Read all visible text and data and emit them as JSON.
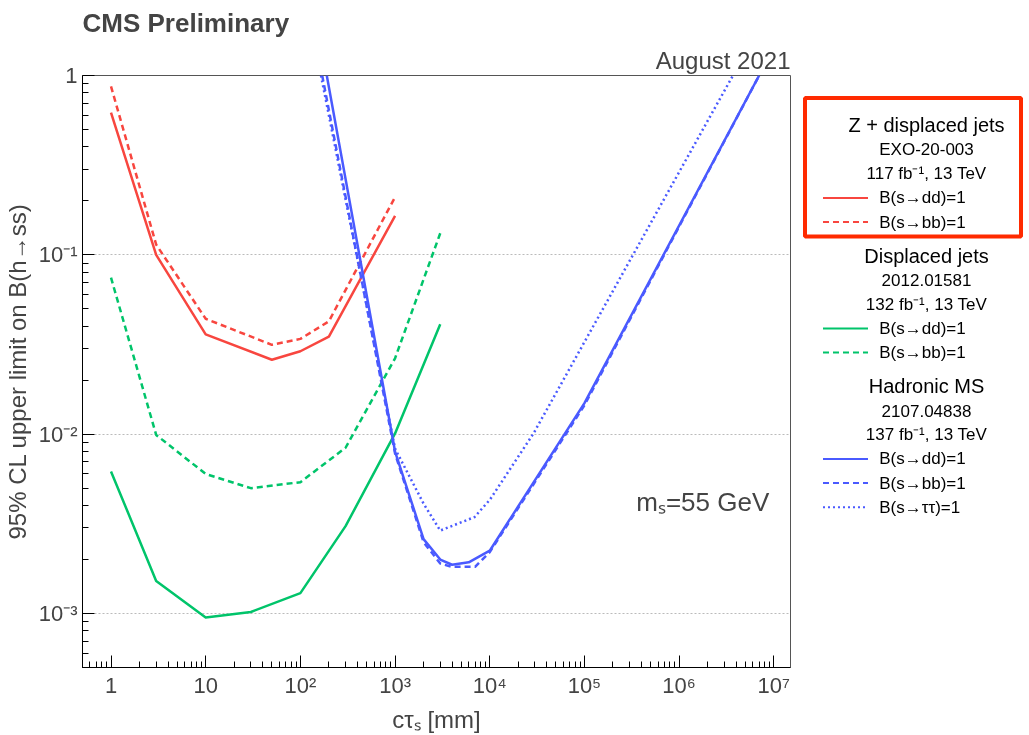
{
  "chart_data": {
    "type": "line",
    "title": "CMS Preliminary",
    "subtitle": "August 2021",
    "xlabel": "cτₛ [mm]",
    "ylabel": "95% CL upper limit on B(h→ss)",
    "log": "xy",
    "grid": "y",
    "legend": "right",
    "xlim": [
      0.5,
      15000000
    ],
    "ylim": [
      0.0005,
      1
    ],
    "xticks": [
      1,
      10,
      {
        "value": 100,
        "label": "10²"
      },
      {
        "value": 1000,
        "label": "10³"
      },
      {
        "value": 10000,
        "label": "10⁴"
      },
      {
        "value": 100000,
        "label": "10⁵"
      },
      {
        "value": 1000000,
        "label": "10⁶"
      },
      {
        "value": 10000000,
        "label": "10⁷"
      }
    ],
    "yticks": [
      {
        "value": 0.001,
        "label": "10⁻³"
      },
      {
        "value": 0.01,
        "label": "10⁻²"
      },
      {
        "value": 0.1,
        "label": "10⁻¹"
      },
      1
    ],
    "annotations": [
      "Z + displaced jets",
      "EXO-20-003",
      "117 fb⁻¹, 13 TeV",
      "Displaced jets",
      "2012.01581",
      "132 fb⁻¹, 13 TeV",
      "Hadronic MS",
      "2107.04838",
      "137 fb⁻¹, 13 TeV",
      "mₛ=55 GeV"
    ],
    "series": [
      {
        "name": "B(s→dd)=1",
        "color": "#f8463f",
        "line_style": "solid",
        "x": [
          1,
          3,
          10,
          50,
          100,
          200,
          1000
        ],
        "values": [
          0.62,
          0.1,
          0.036,
          0.026,
          0.029,
          0.035,
          0.165
        ]
      },
      {
        "name": "B(s→bb)=1",
        "color": "#f8463f",
        "line_style": "dashed",
        "x": [
          1,
          3,
          10,
          50,
          100,
          200,
          1000
        ],
        "values": [
          0.87,
          0.114,
          0.044,
          0.0315,
          0.034,
          0.0426,
          0.21
        ]
      },
      {
        "name": "B(s→dd)=1",
        "color": "#00c46a",
        "line_style": "solid",
        "x": [
          1,
          3,
          10,
          30,
          100,
          300,
          1000,
          3000
        ],
        "values": [
          0.0062,
          0.00152,
          0.00095,
          0.00102,
          0.0013,
          0.00307,
          0.0101,
          0.041
        ]
      },
      {
        "name": "B(s→bb)=1",
        "color": "#00c46a",
        "line_style": "dashed",
        "x": [
          1,
          3,
          10,
          30,
          100,
          300,
          1000,
          3000
        ],
        "values": [
          0.0746,
          0.0099,
          0.006,
          0.005,
          0.0054,
          0.0084,
          0.0265,
          0.132
        ]
      },
      {
        "name": "B(s→dd)=1",
        "color": "#4a5aff",
        "line_style": "solid",
        "x": [
          190,
          1000,
          2000,
          3000,
          4000,
          6000,
          10000,
          100000,
          7000000
        ],
        "values": [
          1,
          0.008,
          0.0026,
          0.002,
          0.00187,
          0.00193,
          0.00224,
          0.0149,
          1
        ]
      },
      {
        "name": "B(s→bb)=1",
        "color": "#4a5aff",
        "line_style": "dashed",
        "x": [
          170,
          1000,
          2000,
          3000,
          4000,
          7000,
          10000,
          100000,
          7000000
        ],
        "values": [
          1,
          0.0078,
          0.0025,
          0.0019,
          0.00182,
          0.00182,
          0.0022,
          0.0145,
          1
        ]
      },
      {
        "name": "B(s→ττ)=1",
        "color": "#4a5aff",
        "line_style": "dotted",
        "x": [
          165,
          1000,
          2000,
          3000,
          6900,
          10000,
          29000,
          3700000
        ],
        "values": [
          1,
          0.0083,
          0.0041,
          0.0029,
          0.00345,
          0.0043,
          0.0101,
          1
        ]
      }
    ]
  }
}
